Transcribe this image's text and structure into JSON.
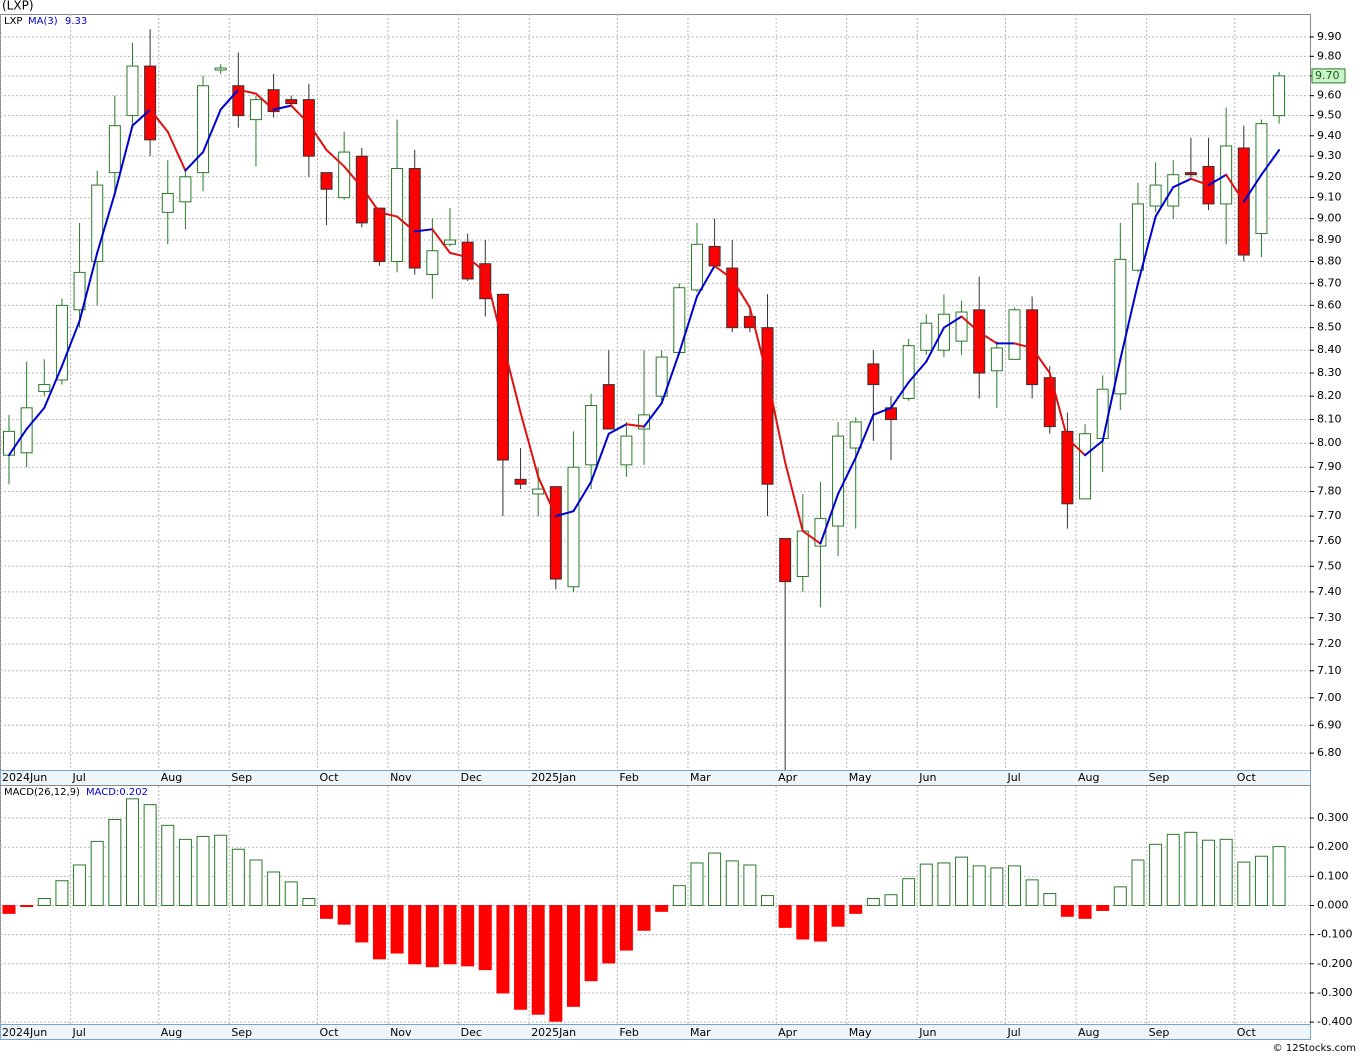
{
  "chart_data": [
    {
      "type": "candlestick",
      "title": "(LXP)",
      "symbol": "LXP",
      "categories": [
        "2024Jun",
        null,
        null,
        null,
        "Jul",
        null,
        null,
        null,
        null,
        "Aug",
        null,
        null,
        null,
        "Sep",
        null,
        null,
        null,
        null,
        "Oct",
        null,
        null,
        null,
        "Nov",
        null,
        null,
        null,
        "Dec",
        null,
        null,
        null,
        "2025Jan",
        null,
        null,
        null,
        null,
        "Feb",
        null,
        null,
        null,
        "Mar",
        null,
        null,
        null,
        null,
        "Apr",
        null,
        null,
        null,
        "May",
        null,
        null,
        null,
        "Jun",
        null,
        null,
        null,
        null,
        "Jul",
        null,
        null,
        null,
        "Aug",
        null,
        null,
        null,
        "Sep",
        null,
        null,
        null,
        null,
        "Oct",
        null,
        null
      ],
      "open": [
        7.95,
        7.96,
        8.22,
        8.27,
        8.58,
        8.8,
        9.22,
        9.5,
        9.75,
        9.03,
        9.08,
        9.22,
        9.73,
        9.65,
        9.48,
        9.63,
        9.58,
        9.58,
        9.22,
        9.1,
        9.3,
        9.05,
        8.8,
        9.24,
        8.74,
        8.88,
        8.89,
        8.79,
        8.65,
        7.85,
        7.79,
        7.82,
        7.42,
        7.91,
        8.25,
        7.91,
        8.06,
        8.2,
        8.39,
        8.67,
        8.87,
        8.77,
        8.55,
        8.5,
        7.61,
        7.46,
        7.58,
        7.66,
        7.98,
        8.34,
        8.15,
        8.19,
        8.4,
        8.4,
        8.44,
        8.58,
        8.31,
        8.36,
        8.58,
        8.28,
        8.05,
        7.77,
        8.02,
        8.21,
        8.76,
        9.06,
        9.06,
        9.22,
        9.25,
        9.07,
        9.34,
        8.93,
        9.5
      ],
      "high": [
        8.12,
        8.35,
        8.36,
        8.63,
        8.98,
        9.23,
        9.6,
        9.87,
        9.94,
        9.28,
        9.24,
        9.7,
        9.76,
        9.82,
        9.6,
        9.71,
        9.6,
        9.66,
        9.22,
        9.42,
        9.34,
        9.05,
        9.48,
        9.33,
        9.0,
        9.05,
        8.93,
        8.9,
        8.65,
        7.98,
        7.9,
        7.82,
        8.05,
        8.21,
        8.4,
        8.09,
        8.4,
        8.4,
        8.7,
        8.98,
        9.0,
        8.9,
        8.6,
        8.65,
        7.61,
        7.79,
        7.84,
        8.09,
        8.11,
        8.4,
        8.2,
        8.45,
        8.56,
        8.65,
        8.62,
        8.73,
        8.44,
        8.59,
        8.64,
        8.33,
        8.13,
        8.08,
        8.29,
        8.98,
        9.17,
        9.27,
        9.28,
        9.39,
        9.39,
        9.54,
        9.45,
        9.48,
        9.72
      ],
      "low": [
        7.83,
        7.9,
        8.2,
        8.25,
        8.5,
        8.6,
        9.12,
        9.45,
        9.3,
        8.88,
        8.95,
        9.13,
        9.71,
        9.44,
        9.25,
        9.49,
        9.55,
        9.2,
        8.97,
        9.09,
        8.96,
        8.78,
        8.75,
        8.74,
        8.63,
        8.87,
        8.71,
        8.55,
        7.7,
        7.81,
        7.7,
        7.41,
        7.4,
        7.81,
        8.06,
        7.86,
        7.91,
        8.18,
        8.38,
        8.66,
        8.77,
        8.48,
        8.48,
        7.7,
        6.74,
        7.4,
        7.34,
        7.54,
        7.65,
        8.01,
        7.93,
        8.18,
        8.38,
        8.37,
        8.38,
        8.19,
        8.15,
        8.36,
        8.19,
        8.04,
        7.65,
        7.77,
        7.88,
        8.14,
        8.75,
        9.03,
        9.0,
        9.19,
        9.04,
        8.88,
        8.8,
        8.82,
        9.46
      ],
      "close": [
        8.05,
        8.15,
        8.25,
        8.6,
        8.75,
        9.16,
        9.45,
        9.75,
        9.38,
        9.12,
        9.2,
        9.65,
        9.74,
        9.5,
        9.58,
        9.52,
        9.56,
        9.3,
        9.14,
        9.32,
        8.98,
        8.8,
        9.24,
        8.77,
        8.85,
        8.9,
        8.72,
        8.63,
        7.93,
        7.83,
        7.81,
        7.45,
        7.9,
        8.16,
        8.06,
        8.03,
        8.12,
        8.37,
        8.68,
        8.88,
        8.78,
        8.5,
        8.5,
        7.83,
        7.44,
        7.64,
        7.69,
        8.03,
        8.09,
        8.25,
        8.1,
        8.42,
        8.52,
        8.56,
        8.57,
        8.3,
        8.41,
        8.58,
        8.25,
        8.07,
        7.75,
        8.04,
        8.23,
        8.81,
        9.07,
        9.16,
        9.21,
        9.21,
        9.07,
        9.35,
        8.83,
        9.46,
        9.7
      ],
      "up_color": "#2a7a2a",
      "down_color": "#ff0000",
      "ma": {
        "name": "MA(3)",
        "up_color": "#0000d0",
        "down_color": "#e01010",
        "values": [
          7.95,
          8.06,
          8.15,
          8.33,
          8.53,
          8.84,
          9.12,
          9.45,
          9.53,
          9.42,
          9.23,
          9.32,
          9.53,
          9.63,
          9.61,
          9.53,
          9.55,
          9.46,
          9.33,
          9.25,
          9.15,
          9.03,
          9.01,
          8.94,
          8.95,
          8.84,
          8.82,
          8.75,
          8.43,
          8.13,
          7.86,
          7.7,
          7.72,
          7.84,
          8.04,
          8.08,
          8.07,
          8.17,
          8.39,
          8.64,
          8.78,
          8.72,
          8.59,
          8.28,
          7.92,
          7.64,
          7.59,
          7.79,
          7.94,
          8.12,
          8.15,
          8.26,
          8.35,
          8.5,
          8.55,
          8.48,
          8.43,
          8.43,
          8.41,
          8.3,
          8.02,
          7.95,
          8.01,
          8.36,
          8.7,
          9.01,
          9.15,
          9.19,
          9.16,
          9.21,
          9.08,
          9.21,
          9.33
        ]
      },
      "price_tag": "9.70",
      "log_scale": true,
      "grid": true,
      "ylim": [
        6.74,
        10.02
      ],
      "yticks": [
        {
          "value": 6.8,
          "label": "6.80"
        },
        {
          "value": 6.9,
          "label": "6.90"
        },
        {
          "value": 7.0,
          "label": "7.00"
        },
        {
          "value": 7.1,
          "label": "7.10"
        },
        {
          "value": 7.2,
          "label": "7.20"
        },
        {
          "value": 7.3,
          "label": "7.30"
        },
        {
          "value": 7.4,
          "label": "7.40"
        },
        {
          "value": 7.5,
          "label": "7.50"
        },
        {
          "value": 7.6,
          "label": "7.60"
        },
        {
          "value": 7.7,
          "label": "7.70"
        },
        {
          "value": 7.8,
          "label": "7.80"
        },
        {
          "value": 7.9,
          "label": "7.90"
        },
        {
          "value": 8.0,
          "label": "8.00"
        },
        {
          "value": 8.1,
          "label": "8.10"
        },
        {
          "value": 8.2,
          "label": "8.20"
        },
        {
          "value": 8.3,
          "label": "8.30"
        },
        {
          "value": 8.4,
          "label": "8.40"
        },
        {
          "value": 8.5,
          "label": "8.50"
        },
        {
          "value": 8.6,
          "label": "8.60"
        },
        {
          "value": 8.7,
          "label": "8.70"
        },
        {
          "value": 8.8,
          "label": "8.80"
        },
        {
          "value": 8.9,
          "label": "8.90"
        },
        {
          "value": 9.0,
          "label": "9.00"
        },
        {
          "value": 9.1,
          "label": "9.10"
        },
        {
          "value": 9.2,
          "label": "9.20"
        },
        {
          "value": 9.3,
          "label": "9.30"
        },
        {
          "value": 9.4,
          "label": "9.40"
        },
        {
          "value": 9.5,
          "label": "9.50"
        },
        {
          "value": 9.6,
          "label": "9.60"
        },
        {
          "value": 9.7,
          "label": "9.70"
        },
        {
          "value": 9.8,
          "label": "9.80"
        },
        {
          "value": 9.9,
          "label": "9.90"
        }
      ]
    },
    {
      "type": "bar",
      "name": "MACD(26,12,9)",
      "label": "MACD:0.202",
      "up_color": "#2a7a2a",
      "down_color": "#ff0000",
      "grid": true,
      "values": [
        -0.027,
        -0.003,
        0.024,
        0.085,
        0.139,
        0.22,
        0.295,
        0.366,
        0.346,
        0.275,
        0.227,
        0.237,
        0.241,
        0.193,
        0.156,
        0.115,
        0.081,
        0.024,
        -0.044,
        -0.064,
        -0.125,
        -0.183,
        -0.163,
        -0.2,
        -0.21,
        -0.2,
        -0.207,
        -0.22,
        -0.3,
        -0.356,
        -0.373,
        -0.397,
        -0.346,
        -0.258,
        -0.197,
        -0.153,
        -0.085,
        -0.02,
        0.068,
        0.146,
        0.18,
        0.153,
        0.139,
        0.034,
        -0.075,
        -0.115,
        -0.122,
        -0.071,
        -0.027,
        0.024,
        0.037,
        0.092,
        0.142,
        0.146,
        0.166,
        0.136,
        0.129,
        0.136,
        0.088,
        0.041,
        -0.037,
        -0.044,
        -0.017,
        0.064,
        0.156,
        0.21,
        0.244,
        0.251,
        0.224,
        0.227,
        0.149,
        0.169,
        0.202
      ],
      "ylim": [
        -0.41,
        0.41
      ],
      "yticks": [
        {
          "value": -0.4,
          "label": "-0.400"
        },
        {
          "value": -0.3,
          "label": "-0.300"
        },
        {
          "value": -0.2,
          "label": "-0.200"
        },
        {
          "value": -0.1,
          "label": "-0.100"
        },
        {
          "value": 0,
          "label": "0.000"
        },
        {
          "value": 0.1,
          "label": "0.100"
        },
        {
          "value": 0.2,
          "label": "0.200"
        },
        {
          "value": 0.3,
          "label": "0.300"
        }
      ]
    }
  ],
  "footer": "© 12Stocks.com"
}
